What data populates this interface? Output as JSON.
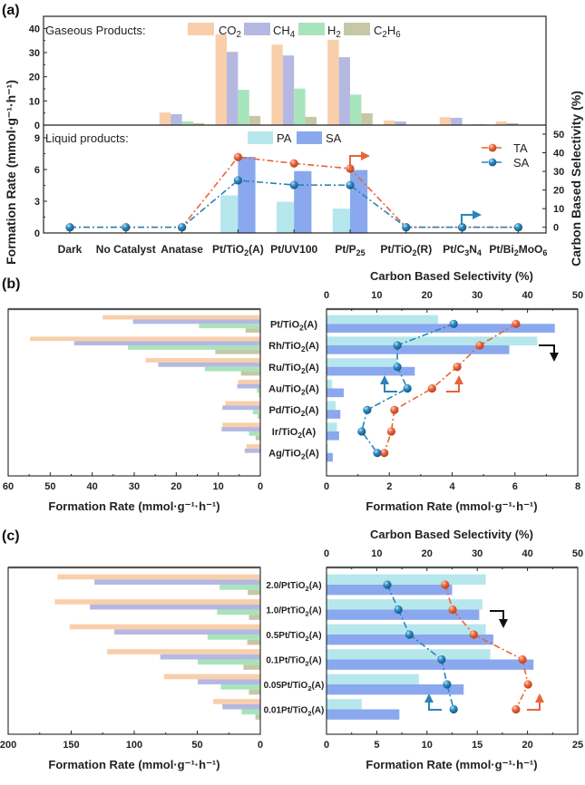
{
  "panel_labels": [
    "(a)",
    "(b)",
    "(c)"
  ],
  "colors": {
    "co2": "#f9cfab",
    "ch4": "#b5b9e1",
    "h2": "#a8e4bb",
    "c2h6": "#c6c7a7",
    "pa": "#b5e7ec",
    "sa": "#8aa8ee",
    "ta_line": "#e8643a",
    "sa_line": "#2b83b8",
    "axis": "#222222"
  },
  "chart_data": [
    {
      "type": "bar",
      "panel": "(a)",
      "ylabel": "Formation Rate (mmol·g⁻¹·h⁻¹)",
      "categories": [
        "Dark",
        "No Catalyst",
        "Anatase",
        "Pt/TiO2(A)",
        "Pt/UV100",
        "Pt/P25",
        "Pt/TiO2(R)",
        "Pt/C3N4",
        "Pt/Bi2MoO6"
      ],
      "gas": {
        "legend_title": "Gaseous Products:",
        "ylim": [
          0,
          45
        ],
        "yticks": [
          0,
          10,
          20,
          30,
          40
        ],
        "series": [
          {
            "name": "CO2",
            "values": [
              0,
              0,
              5.2,
              37.5,
              33.3,
              35.3,
              1.9,
              3.3,
              1.5
            ]
          },
          {
            "name": "CH4",
            "values": [
              0,
              0,
              4.5,
              30.3,
              28.8,
              28.1,
              1.5,
              3.0,
              0.8
            ]
          },
          {
            "name": "H2",
            "values": [
              0,
              0,
              1.5,
              14.6,
              15.1,
              12.6,
              0,
              0,
              0
            ]
          },
          {
            "name": "C2H6",
            "values": [
              0,
              0,
              0.8,
              3.8,
              3.4,
              4.9,
              0,
              0.3,
              0
            ]
          }
        ]
      },
      "liquid": {
        "legend_title": "Liquid products:",
        "ylim": [
          0,
          10.2
        ],
        "yticks": [
          0,
          3,
          6,
          9
        ],
        "series": [
          {
            "name": "PA",
            "values": [
              0,
              0,
              0,
              3.55,
              2.95,
              2.3,
              0,
              0,
              0
            ]
          },
          {
            "name": "SA",
            "values": [
              0,
              0,
              0,
              7.2,
              5.85,
              5.95,
              0,
              0,
              0
            ]
          }
        ]
      },
      "selectivity": {
        "ylabel": "Carbon Based Selectivity (%)",
        "ylim": [
          -3,
          55
        ],
        "yticks": [
          0,
          10,
          20,
          30,
          40,
          50
        ],
        "series": [
          {
            "name": "TA",
            "values": [
              0,
              0,
              0,
              37.7,
              34.3,
              31.5,
              0,
              0,
              0
            ]
          },
          {
            "name": "SA",
            "values": [
              0,
              0,
              0,
              25.2,
              22.7,
              22.6,
              0,
              0,
              0
            ]
          }
        ]
      }
    },
    {
      "type": "bar",
      "panel": "(b)",
      "categories": [
        "Pt/TiO2(A)",
        "Rh/TiO2(A)",
        "Ru/TiO2(A)",
        "Au/TiO2(A)",
        "Pd/TiO2(A)",
        "Ir/TiO2(A)",
        "Ag/TiO2(A)"
      ],
      "gas": {
        "xlabel": "Formation Rate (mmol·g⁻¹·h⁻¹)",
        "xlim": [
          0,
          60
        ],
        "xticks": [
          60,
          50,
          40,
          30,
          20,
          10,
          0
        ],
        "series": [
          {
            "name": "CO2",
            "values": [
              37.5,
              54.8,
              27.3,
              5.3,
              8.3,
              9.0,
              3.3
            ]
          },
          {
            "name": "CH4",
            "values": [
              30.3,
              44.3,
              24.3,
              5.5,
              9.0,
              9.2,
              3.7
            ]
          },
          {
            "name": "H2",
            "values": [
              14.6,
              31.5,
              13.2,
              0.8,
              1.8,
              2.7,
              0
            ]
          },
          {
            "name": "C2H6",
            "values": [
              3.5,
              10.7,
              4.6,
              0.3,
              0.6,
              1.1,
              0
            ]
          }
        ]
      },
      "liquid": {
        "xlabel": "Formation Rate (mmol·g⁻¹·h⁻¹)",
        "xlim": [
          0,
          8
        ],
        "xticks": [
          0,
          2,
          4,
          6,
          8
        ],
        "series": [
          {
            "name": "PA",
            "values": [
              3.55,
              6.71,
              2.25,
              0.18,
              0.29,
              0.33,
              0.04
            ]
          },
          {
            "name": "SA",
            "values": [
              7.27,
              5.82,
              2.81,
              0.55,
              0.44,
              0.4,
              0.2
            ]
          }
        ]
      },
      "selectivity": {
        "xlabel": "Carbon Based Selectivity (%)",
        "xlim": [
          0,
          50
        ],
        "xticks": [
          0,
          10,
          20,
          30,
          40,
          50
        ],
        "series": [
          {
            "name": "TA",
            "values": [
              37.7,
              30.5,
              26.0,
              21.0,
              13.5,
              12.9,
              11.5
            ]
          },
          {
            "name": "SA",
            "values": [
              25.3,
              14.1,
              14.1,
              16.1,
              8.1,
              7.0,
              10.1
            ]
          }
        ]
      }
    },
    {
      "type": "bar",
      "panel": "(c)",
      "categories": [
        "2.0/PtTiO2(A)",
        "1.0/PtTiO2(A)",
        "0.5Pt/TiO2(A)",
        "0.1Pt/TiO2(A)",
        "0.05Pt/TiO2(A)",
        "0.01Pt/TiO2(A)"
      ],
      "gas": {
        "xlabel": "Formation Rate (mmol·g⁻¹·h⁻¹)",
        "xlim": [
          0,
          200
        ],
        "xticks": [
          200,
          150,
          100,
          50,
          0
        ],
        "series": [
          {
            "name": "CO2",
            "values": [
              160.9,
              163.0,
              151.3,
              121.5,
              76.4,
              37.3
            ]
          },
          {
            "name": "CH4",
            "values": [
              131.6,
              135.2,
              115.8,
              79.4,
              49.6,
              30.1
            ]
          },
          {
            "name": "H2",
            "values": [
              32.2,
              34.3,
              41.8,
              49.6,
              31.3,
              14.9
            ]
          },
          {
            "name": "C2H6",
            "values": [
              9.9,
              9.0,
              10.4,
              13.4,
              9.0,
              3.9
            ]
          }
        ]
      },
      "liquid": {
        "xlabel": "Formation Rate (mmol·g⁻¹·h⁻¹)",
        "xlim": [
          0,
          25
        ],
        "xticks": [
          0,
          5,
          10,
          15,
          20,
          25
        ],
        "series": [
          {
            "name": "PA",
            "values": [
              15.85,
              15.5,
              15.85,
              16.3,
              9.2,
              3.5
            ]
          },
          {
            "name": "SA",
            "values": [
              12.5,
              15.2,
              16.6,
              20.6,
              13.65,
              7.25
            ]
          }
        ]
      },
      "selectivity": {
        "xlabel": "Carbon Based Selectivity (%)",
        "xlim": [
          0,
          50
        ],
        "xticks": [
          0,
          10,
          20,
          30,
          40,
          50
        ],
        "series": [
          {
            "name": "TA",
            "values": [
              23.6,
              25.1,
              29.3,
              39.0,
              40.1,
              37.7
            ]
          },
          {
            "name": "SA",
            "values": [
              12.1,
              14.3,
              16.5,
              22.9,
              24.0,
              25.3
            ]
          }
        ]
      }
    }
  ]
}
